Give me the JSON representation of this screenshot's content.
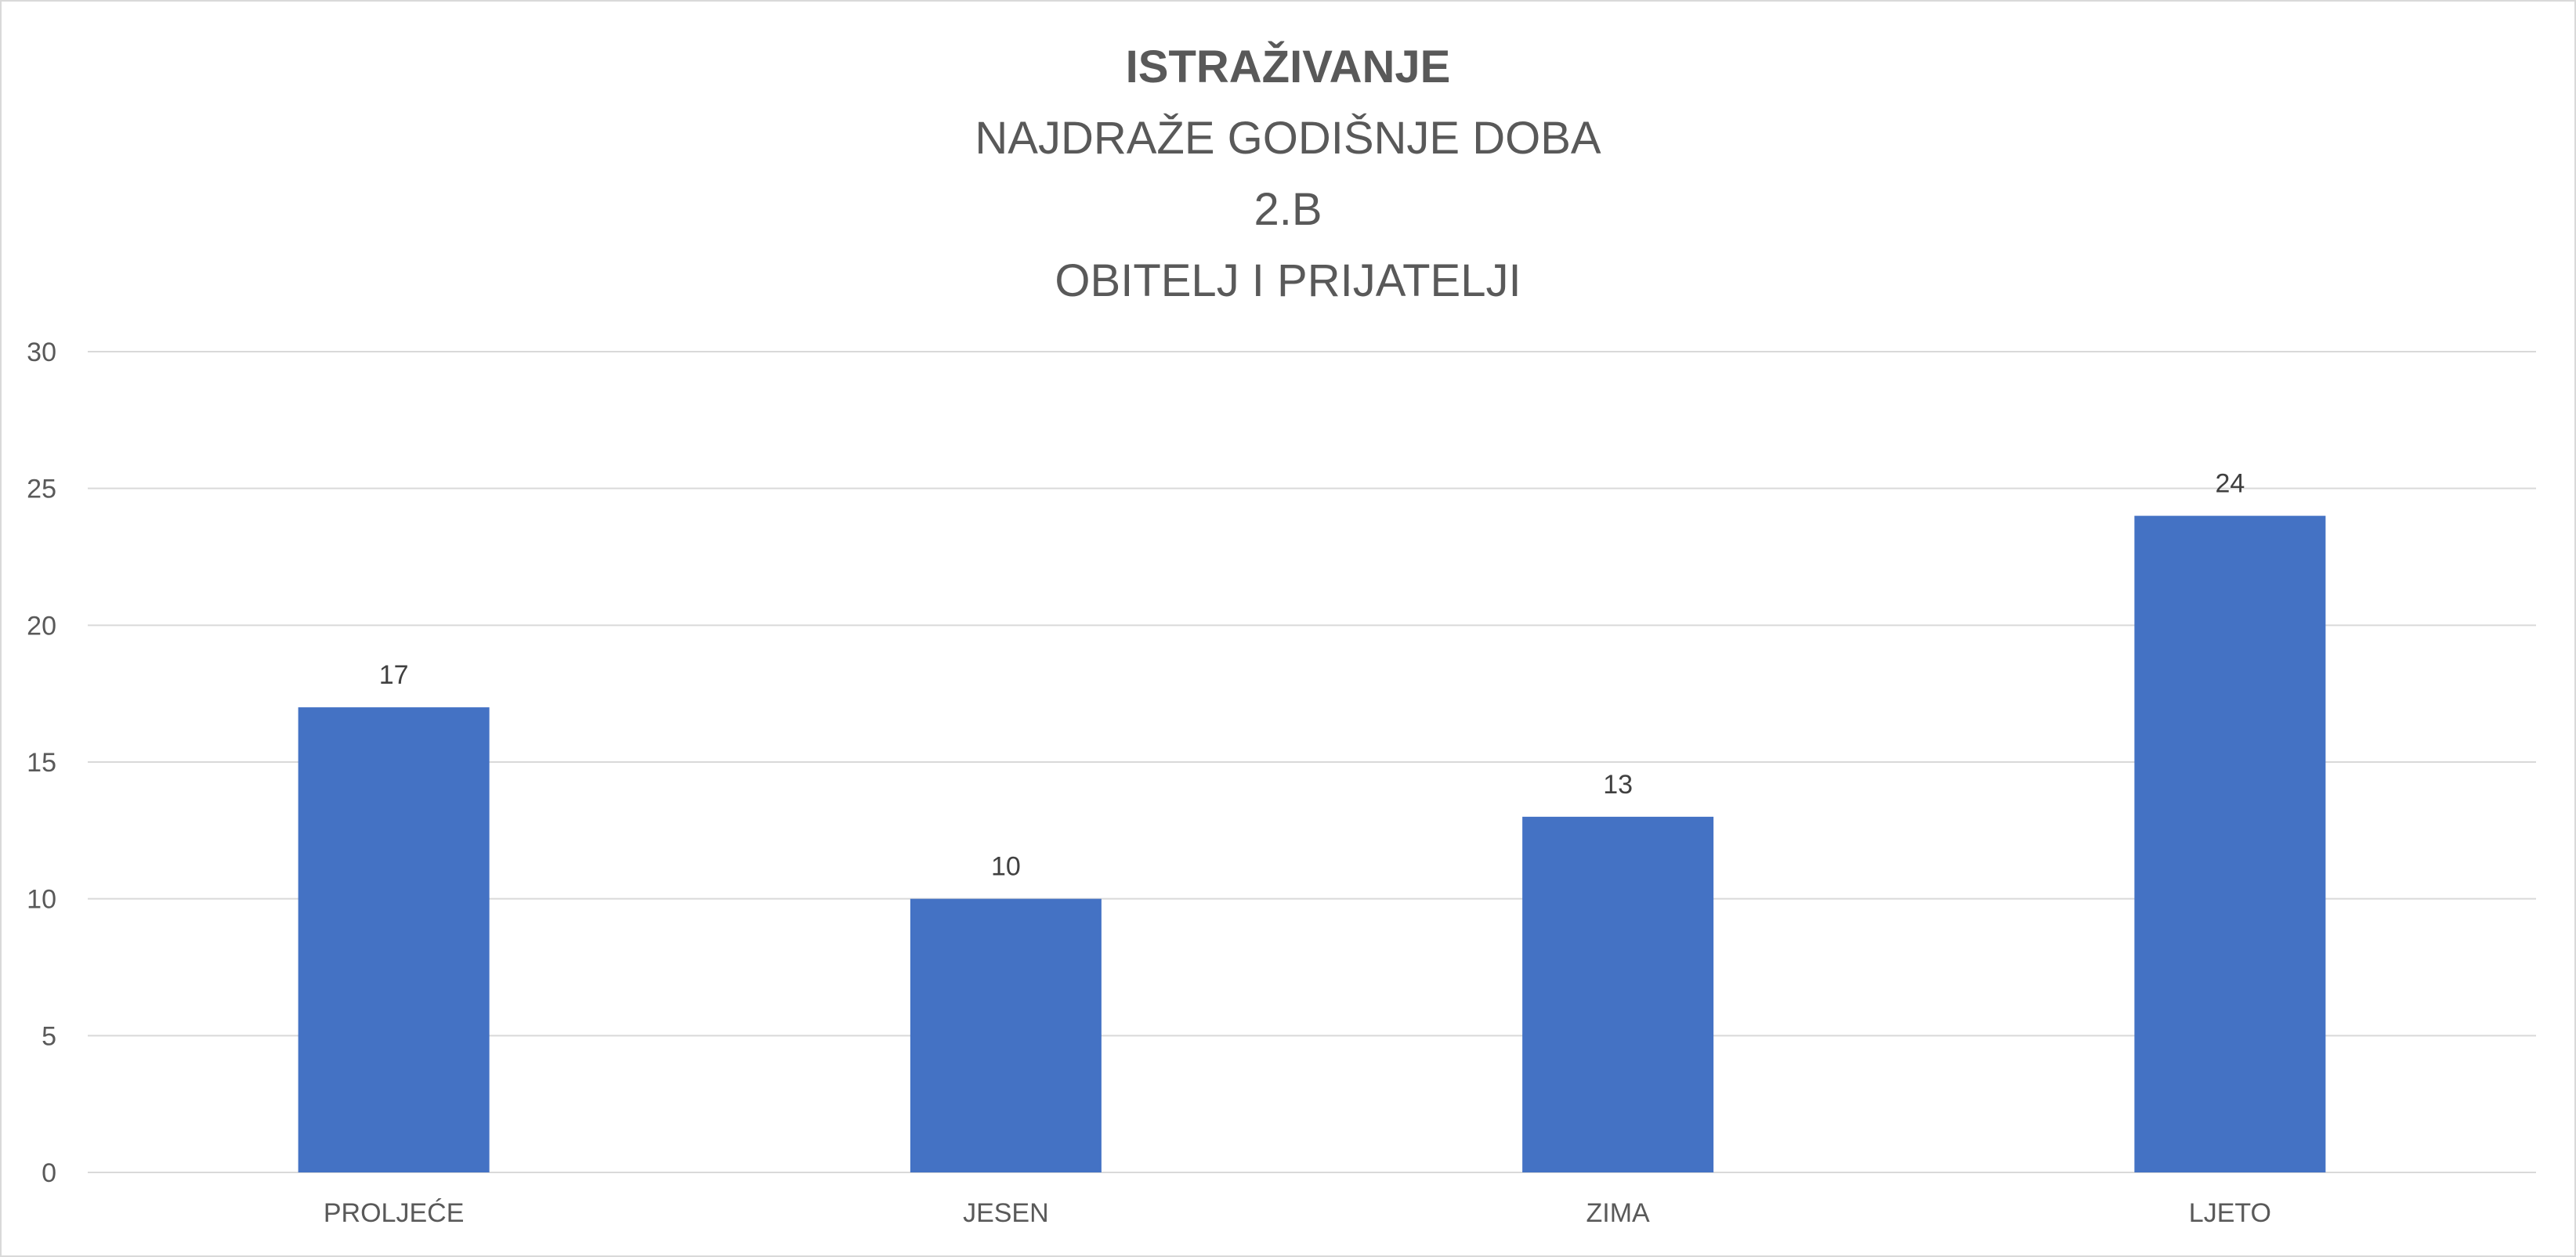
{
  "chart_data": {
    "type": "bar",
    "title": "ISTRAŽIVANJE",
    "subtitle_lines": [
      "NAJDRAŽE GODIŠNJE DOBA",
      "2.B",
      "OBITELJ I PRIJATELJI"
    ],
    "categories": [
      "PROLJEĆE",
      "JESEN",
      "ZIMA",
      "LJETO"
    ],
    "series": [
      {
        "values": [
          17,
          10,
          13,
          24
        ]
      }
    ],
    "data_labels": [
      "17",
      "10",
      "13",
      "24"
    ],
    "ylim": [
      0,
      30
    ],
    "yticks": [
      0,
      5,
      10,
      15,
      20,
      25,
      30
    ],
    "ytick_labels": [
      "0",
      "5",
      "10",
      "15",
      "20",
      "25",
      "30"
    ],
    "grid": true,
    "legend": "none",
    "xlabel": "",
    "ylabel": "",
    "colors": {
      "bar": "#4472C4",
      "grid": "#d9d9d9",
      "text": "#595959",
      "data_label": "#404040"
    }
  }
}
